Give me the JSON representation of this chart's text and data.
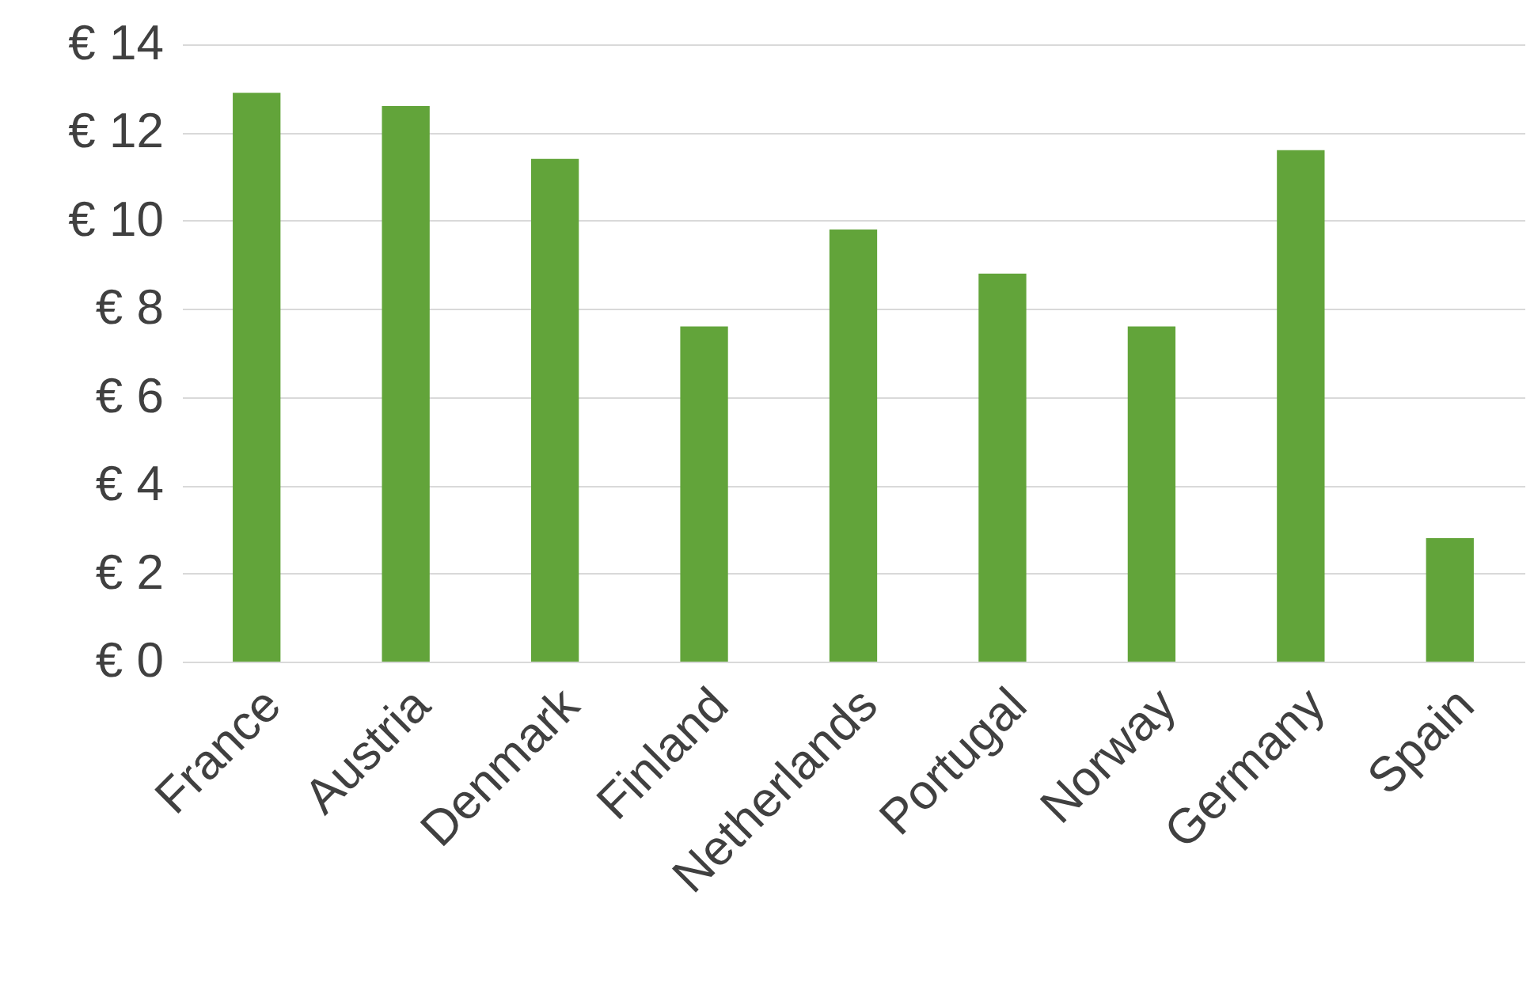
{
  "chart_data": {
    "type": "bar",
    "categories": [
      "France",
      "Austria",
      "Denmark",
      "Finland",
      "Netherlands",
      "Portugal",
      "Norway",
      "Germany",
      "Spain"
    ],
    "values": [
      12.9,
      12.6,
      11.4,
      7.6,
      9.8,
      8.8,
      7.6,
      11.6,
      2.8
    ],
    "color": "#62a43a",
    "ylim": [
      0,
      14
    ],
    "yticks": [
      {
        "value": 0,
        "label": "€ 0"
      },
      {
        "value": 2,
        "label": "€ 2"
      },
      {
        "value": 4,
        "label": "€ 4"
      },
      {
        "value": 6,
        "label": "€ 6"
      },
      {
        "value": 8,
        "label": "€ 8"
      },
      {
        "value": 10,
        "label": "€ 10"
      },
      {
        "value": 12,
        "label": "€ 12"
      },
      {
        "value": 14,
        "label": "€ 14"
      }
    ],
    "grid": "y"
  }
}
